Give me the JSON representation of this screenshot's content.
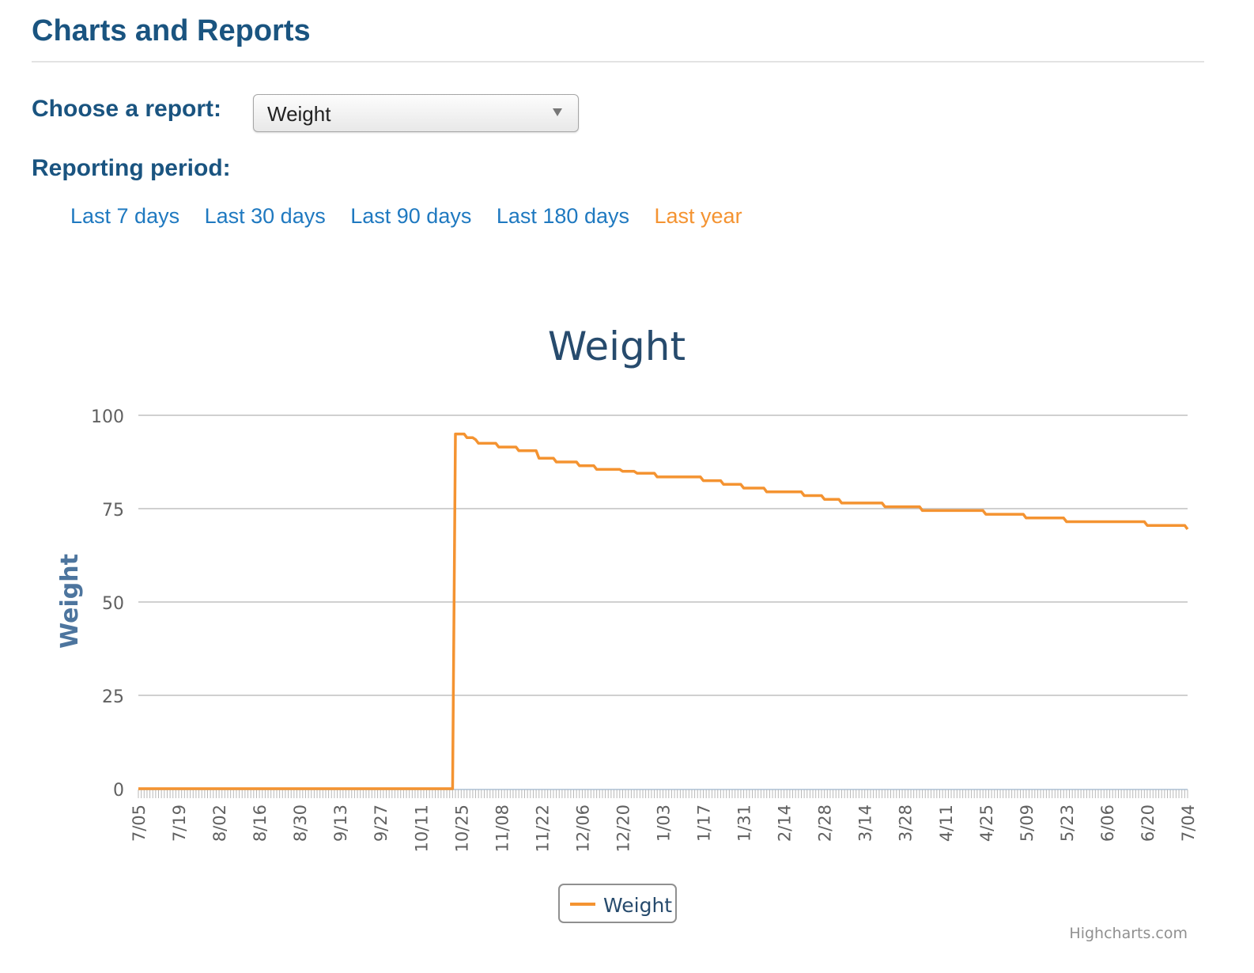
{
  "header": {
    "title": "Charts and Reports"
  },
  "report": {
    "label": "Choose a report:",
    "selected": "Weight"
  },
  "period": {
    "label": "Reporting period:",
    "links": [
      {
        "label": "Last 7 days",
        "active": false
      },
      {
        "label": "Last 30 days",
        "active": false
      },
      {
        "label": "Last 90 days",
        "active": false
      },
      {
        "label": "Last 180 days",
        "active": false
      },
      {
        "label": "Last year",
        "active": true
      }
    ]
  },
  "colors": {
    "heading": "#1a5480",
    "link": "#1f79c0",
    "active": "#f49331",
    "series": "#f49331",
    "grid": "#c0c0c0"
  },
  "chart_data": {
    "type": "line",
    "title": "Weight",
    "xlabel": "",
    "ylabel": "Weight",
    "ylim": [
      0,
      100
    ],
    "yticks": [
      0,
      25,
      50,
      75,
      100
    ],
    "xlim": [
      0,
      364
    ],
    "x_tick_labels": [
      {
        "day": 0,
        "label": "7/05"
      },
      {
        "day": 14,
        "label": "7/19"
      },
      {
        "day": 28,
        "label": "8/02"
      },
      {
        "day": 42,
        "label": "8/16"
      },
      {
        "day": 56,
        "label": "8/30"
      },
      {
        "day": 70,
        "label": "9/13"
      },
      {
        "day": 84,
        "label": "9/27"
      },
      {
        "day": 98,
        "label": "10/11"
      },
      {
        "day": 112,
        "label": "10/25"
      },
      {
        "day": 126,
        "label": "11/08"
      },
      {
        "day": 140,
        "label": "11/22"
      },
      {
        "day": 154,
        "label": "12/06"
      },
      {
        "day": 168,
        "label": "12/20"
      },
      {
        "day": 182,
        "label": "1/03"
      },
      {
        "day": 196,
        "label": "1/17"
      },
      {
        "day": 210,
        "label": "1/31"
      },
      {
        "day": 224,
        "label": "2/14"
      },
      {
        "day": 238,
        "label": "2/28"
      },
      {
        "day": 252,
        "label": "3/14"
      },
      {
        "day": 266,
        "label": "3/28"
      },
      {
        "day": 280,
        "label": "4/11"
      },
      {
        "day": 294,
        "label": "4/25"
      },
      {
        "day": 308,
        "label": "5/09"
      },
      {
        "day": 322,
        "label": "5/23"
      },
      {
        "day": 336,
        "label": "6/06"
      },
      {
        "day": 350,
        "label": "6/20"
      },
      {
        "day": 364,
        "label": "7/04"
      }
    ],
    "series": [
      {
        "name": "Weight",
        "points": [
          [
            0,
            0
          ],
          [
            109,
            0
          ],
          [
            110,
            95
          ],
          [
            113,
            95
          ],
          [
            114,
            94
          ],
          [
            116,
            94
          ],
          [
            117,
            93.5
          ],
          [
            118,
            92.5
          ],
          [
            124,
            92.5
          ],
          [
            125,
            91.5
          ],
          [
            131,
            91.5
          ],
          [
            132,
            90.5
          ],
          [
            138,
            90.5
          ],
          [
            139,
            88.5
          ],
          [
            144,
            88.5
          ],
          [
            145,
            87.5
          ],
          [
            152,
            87.5
          ],
          [
            153,
            86.5
          ],
          [
            158,
            86.5
          ],
          [
            159,
            85.5
          ],
          [
            167,
            85.5
          ],
          [
            168,
            85
          ],
          [
            172,
            85
          ],
          [
            173,
            84.5
          ],
          [
            179,
            84.5
          ],
          [
            180,
            83.5
          ],
          [
            195,
            83.5
          ],
          [
            196,
            82.5
          ],
          [
            202,
            82.5
          ],
          [
            203,
            81.5
          ],
          [
            209,
            81.5
          ],
          [
            210,
            80.5
          ],
          [
            217,
            80.5
          ],
          [
            218,
            79.5
          ],
          [
            230,
            79.5
          ],
          [
            231,
            78.5
          ],
          [
            237,
            78.5
          ],
          [
            238,
            77.5
          ],
          [
            243,
            77.5
          ],
          [
            244,
            76.5
          ],
          [
            258,
            76.5
          ],
          [
            259,
            75.5
          ],
          [
            271,
            75.5
          ],
          [
            272,
            74.5
          ],
          [
            293,
            74.5
          ],
          [
            294,
            73.5
          ],
          [
            307,
            73.5
          ],
          [
            308,
            72.5
          ],
          [
            321,
            72.5
          ],
          [
            322,
            71.5
          ],
          [
            349,
            71.5
          ],
          [
            350,
            70.5
          ],
          [
            363,
            70.5
          ],
          [
            364,
            69.5
          ]
        ]
      }
    ],
    "legend": {
      "position": "bottom-center"
    },
    "credits": "Highcharts.com"
  }
}
